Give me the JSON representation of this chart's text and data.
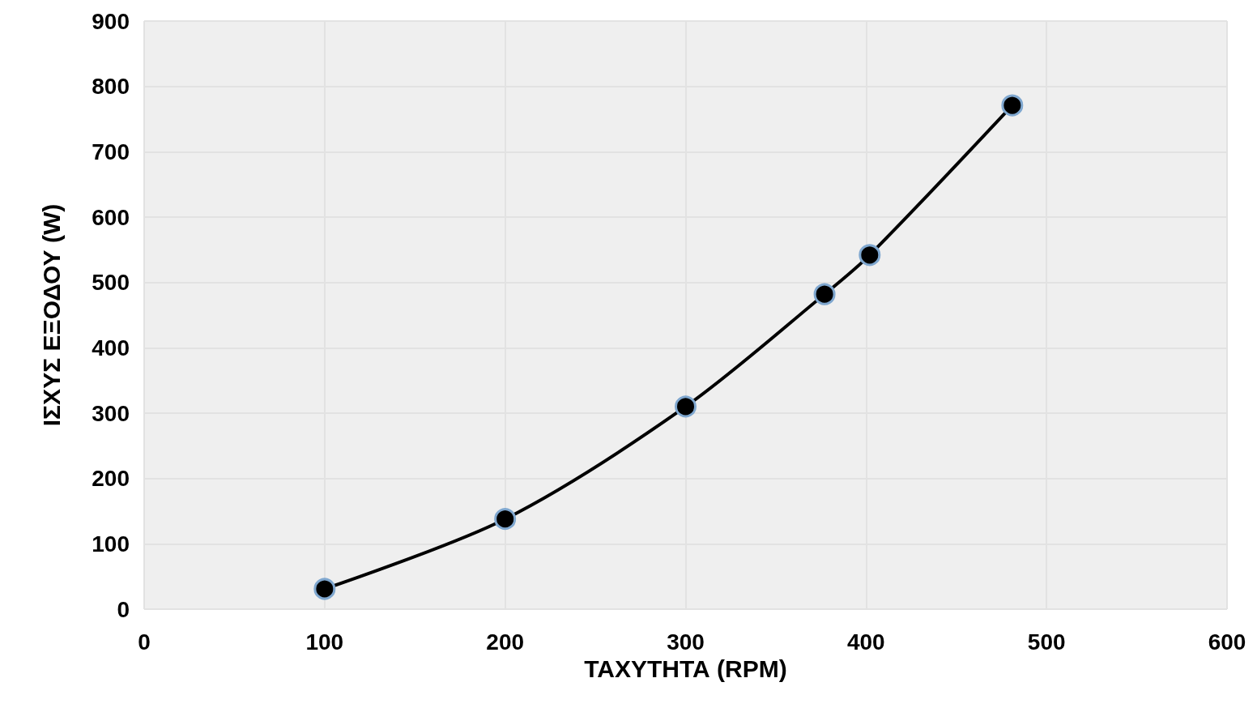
{
  "chart_data": {
    "type": "line",
    "xlabel": "ΤΑΧΥΤΗΤΑ (RPM)",
    "ylabel": "ΙΣΧΥΣ ΕΞΟΔΟΥ (W)",
    "series": [
      {
        "color": "#000000",
        "x": [
          100,
          200,
          300,
          377,
          402,
          481
        ],
        "values": [
          31,
          138,
          310,
          482,
          542,
          771
        ]
      }
    ],
    "xlim": [
      0,
      600
    ],
    "xticks": [
      0,
      100,
      200,
      300,
      400,
      500,
      600
    ],
    "ylim": [
      0,
      900
    ],
    "yticks": [
      0,
      100,
      200,
      300,
      400,
      500,
      600,
      700,
      800,
      900
    ],
    "grid": true,
    "marker": "circle",
    "line_style": "solid"
  }
}
